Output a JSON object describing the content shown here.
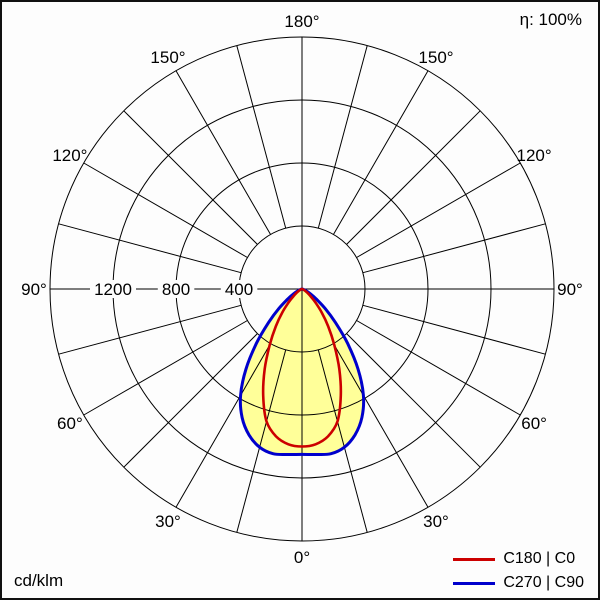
{
  "chart_data": {
    "type": "polar",
    "subtype": "luminous-intensity-distribution",
    "title": "",
    "unit": "cd/klm",
    "efficiency": "η: 100%",
    "angle_unit": "degrees",
    "angle_zero": "bottom",
    "angle_step_deg": 15,
    "angle_labels_deg": [
      0,
      30,
      60,
      90,
      120,
      150,
      180
    ],
    "r_max": 1600,
    "r_rings": [
      400,
      800,
      1200,
      1600
    ],
    "r_tick_labels": [
      1200,
      800,
      400
    ],
    "grid_color": "#000000",
    "series": [
      {
        "name": "C180 | C0",
        "color": "#cc0000",
        "gamma_deg": [
          0,
          5,
          10,
          15,
          20,
          25,
          30,
          35,
          40,
          45,
          50,
          55,
          60,
          65,
          70,
          75,
          80,
          85,
          90
        ],
        "values": [
          1000,
          990,
          950,
          870,
          720,
          560,
          410,
          290,
          195,
          120,
          70,
          40,
          22,
          12,
          6,
          3,
          2,
          1,
          0
        ]
      },
      {
        "name": "C270 | C90",
        "color": "#0000cc",
        "fill": "#ffff99",
        "gamma_deg": [
          0,
          5,
          10,
          15,
          20,
          25,
          30,
          35,
          40,
          45,
          50,
          55,
          60,
          65,
          70,
          75,
          80,
          85,
          90
        ],
        "values": [
          1050,
          1055,
          1062,
          1040,
          985,
          900,
          780,
          620,
          450,
          300,
          190,
          110,
          60,
          32,
          16,
          8,
          4,
          2,
          1
        ]
      }
    ]
  }
}
